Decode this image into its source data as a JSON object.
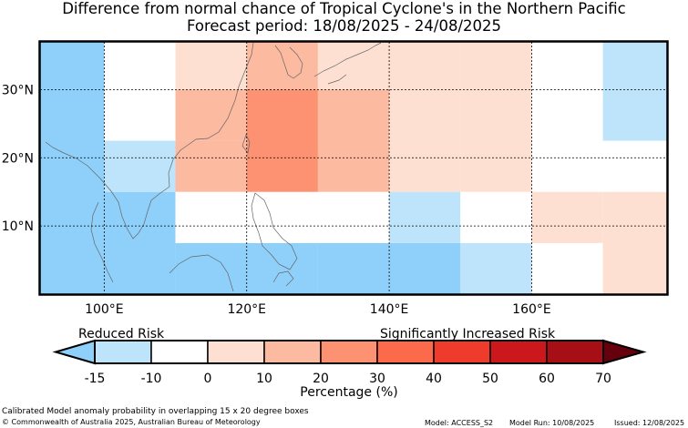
{
  "header": {
    "title": "Difference from normal chance of Tropical Cyclone's in the Northern Pacific",
    "subtitle": "Forecast period: 18/08/2025 - 24/08/2025"
  },
  "map": {
    "lon_range": [
      91,
      179
    ],
    "lat_range": [
      0,
      37
    ],
    "lon_ticks": [
      {
        "value": 100,
        "label": "100°E"
      },
      {
        "value": 120,
        "label": "120°E"
      },
      {
        "value": 140,
        "label": "140°E"
      },
      {
        "value": 160,
        "label": "160°E"
      }
    ],
    "lat_ticks": [
      {
        "value": 10,
        "label": "10°N"
      },
      {
        "value": 20,
        "label": "20°N"
      },
      {
        "value": 30,
        "label": "30°N"
      }
    ],
    "grid": "dashed",
    "cells": [
      {
        "lon": [
          91,
          100
        ],
        "lat": [
          0,
          37
        ],
        "level": -15
      },
      {
        "lon": [
          100,
          110
        ],
        "lat": [
          0,
          15
        ],
        "level": -15
      },
      {
        "lon": [
          100,
          110
        ],
        "lat": [
          15,
          22.5
        ],
        "level": -10
      },
      {
        "lon": [
          100,
          110
        ],
        "lat": [
          22.5,
          37
        ],
        "level": 0
      },
      {
        "lon": [
          110,
          120
        ],
        "lat": [
          0,
          7.5
        ],
        "level": -15
      },
      {
        "lon": [
          110,
          120
        ],
        "lat": [
          7.5,
          15
        ],
        "level": 0
      },
      {
        "lon": [
          110,
          120
        ],
        "lat": [
          15,
          22.5
        ],
        "level": 20
      },
      {
        "lon": [
          110,
          120
        ],
        "lat": [
          22.5,
          30
        ],
        "level": 20
      },
      {
        "lon": [
          110,
          120
        ],
        "lat": [
          30,
          37
        ],
        "level": 10
      },
      {
        "lon": [
          120,
          130
        ],
        "lat": [
          0,
          7.5
        ],
        "level": -15
      },
      {
        "lon": [
          120,
          130
        ],
        "lat": [
          7.5,
          15
        ],
        "level": 0
      },
      {
        "lon": [
          120,
          130
        ],
        "lat": [
          15,
          30
        ],
        "level": 30
      },
      {
        "lon": [
          120,
          130
        ],
        "lat": [
          30,
          37
        ],
        "level": 20
      },
      {
        "lon": [
          130,
          140
        ],
        "lat": [
          0,
          7.5
        ],
        "level": -15
      },
      {
        "lon": [
          130,
          140
        ],
        "lat": [
          7.5,
          15
        ],
        "level": 0
      },
      {
        "lon": [
          130,
          140
        ],
        "lat": [
          15,
          30
        ],
        "level": 20
      },
      {
        "lon": [
          130,
          140
        ],
        "lat": [
          30,
          37
        ],
        "level": 10
      },
      {
        "lon": [
          140,
          150
        ],
        "lat": [
          0,
          7.5
        ],
        "level": -15
      },
      {
        "lon": [
          140,
          150
        ],
        "lat": [
          7.5,
          15
        ],
        "level": -10
      },
      {
        "lon": [
          140,
          150
        ],
        "lat": [
          15,
          37
        ],
        "level": 10
      },
      {
        "lon": [
          150,
          160
        ],
        "lat": [
          0,
          7.5
        ],
        "level": -10
      },
      {
        "lon": [
          150,
          160
        ],
        "lat": [
          7.5,
          15
        ],
        "level": 0
      },
      {
        "lon": [
          150,
          160
        ],
        "lat": [
          15,
          37
        ],
        "level": 10
      },
      {
        "lon": [
          160,
          170
        ],
        "lat": [
          0,
          7.5
        ],
        "level": 0
      },
      {
        "lon": [
          160,
          170
        ],
        "lat": [
          7.5,
          15
        ],
        "level": 10
      },
      {
        "lon": [
          160,
          170
        ],
        "lat": [
          15,
          37
        ],
        "level": 0
      },
      {
        "lon": [
          170,
          179
        ],
        "lat": [
          0,
          15
        ],
        "level": 10
      },
      {
        "lon": [
          170,
          179
        ],
        "lat": [
          15,
          22.5
        ],
        "level": 0
      },
      {
        "lon": [
          170,
          179
        ],
        "lat": [
          22.5,
          37
        ],
        "level": -10
      }
    ]
  },
  "legend": {
    "left_label": "Reduced Risk",
    "right_label": "Significantly Increased Risk",
    "axis_label": "Percentage (%)",
    "ticks": [
      "-15",
      "-10",
      "0",
      "10",
      "20",
      "30",
      "40",
      "50",
      "60",
      "70"
    ],
    "under_color": "#8fd0fb",
    "over_color": "#67000d",
    "bins": [
      {
        "from": -15,
        "to": -10,
        "color": "#bde4fb"
      },
      {
        "from": -10,
        "to": 0,
        "color": "#ffffff"
      },
      {
        "from": 0,
        "to": 10,
        "color": "#fee0d2"
      },
      {
        "from": 10,
        "to": 20,
        "color": "#fcbba1"
      },
      {
        "from": 20,
        "to": 30,
        "color": "#fc9272"
      },
      {
        "from": 30,
        "to": 40,
        "color": "#fb6a4a"
      },
      {
        "from": 40,
        "to": 50,
        "color": "#ef3b2c"
      },
      {
        "from": 50,
        "to": 60,
        "color": "#cb181d"
      },
      {
        "from": 60,
        "to": 70,
        "color": "#a50f15"
      }
    ]
  },
  "level_colors": {
    "-15": "#8fd0fb",
    "-10": "#bde4fb",
    "0": "#ffffff",
    "10": "#fee0d2",
    "20": "#fcbba1",
    "30": "#fc9272",
    "40": "#fb6a4a"
  },
  "footer": {
    "note": "Calibrated Model anomaly probability in overlapping 15 x 20 degree boxes",
    "copyright": "© Commonwealth of Australia 2025, Australian Bureau of Meteorology",
    "model": "Model: ACCESS_S2",
    "model_run": "Model Run: 10/08/2025",
    "issued": "Issued: 12/08/2025"
  }
}
